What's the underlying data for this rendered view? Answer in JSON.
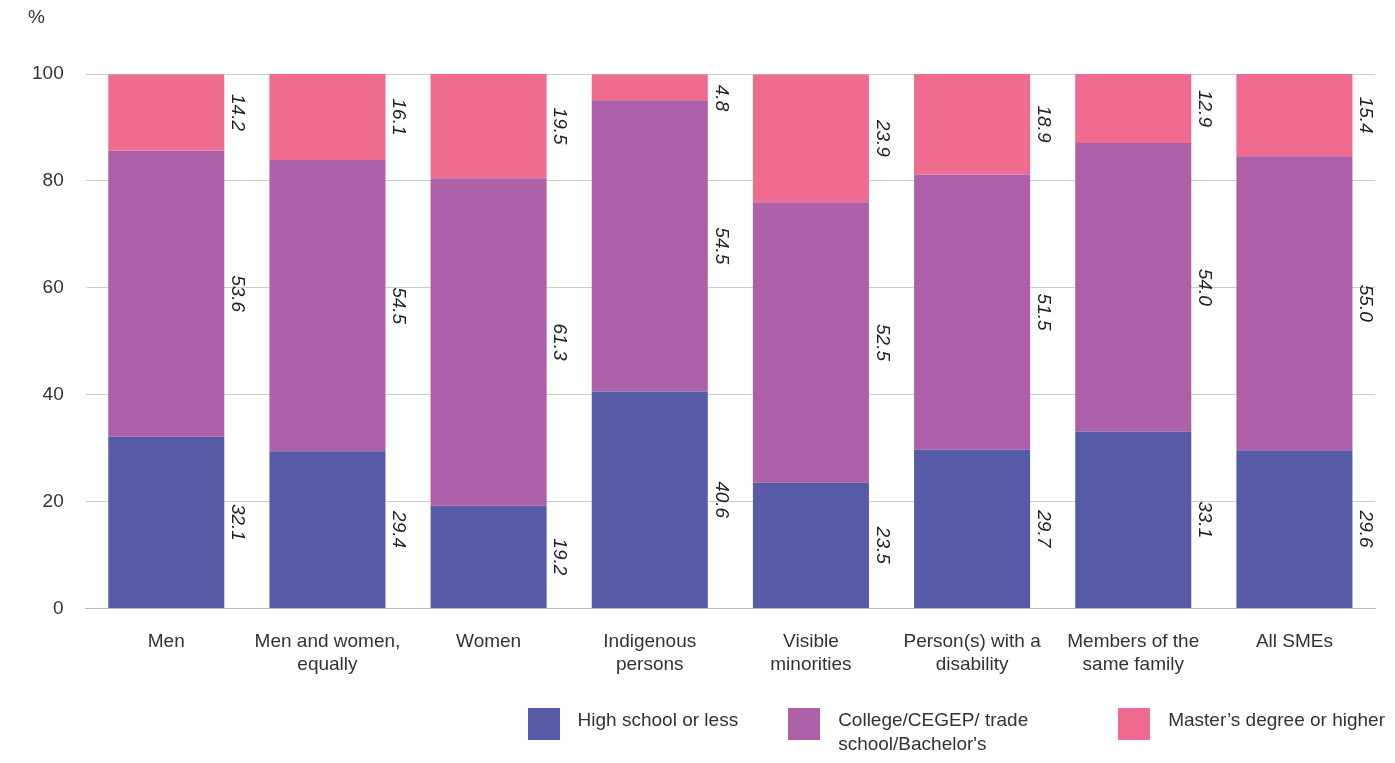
{
  "chart_data": {
    "type": "bar",
    "stacked": true,
    "ylabel": "%",
    "categories": [
      "Men",
      "Men and women, equally",
      "Women",
      "Indigenous persons",
      "Visible minorities",
      "Person(s) with a disability",
      "Members of the same family",
      "All SMEs"
    ],
    "series": [
      {
        "name": "High school or less",
        "color": "#575aa6",
        "values": [
          32.1,
          29.4,
          19.2,
          40.6,
          23.5,
          29.7,
          33.1,
          29.6
        ],
        "value_labels": [
          "32.1",
          "29.4",
          "19.2",
          "40.6",
          "23.5",
          "29.7",
          "33.1",
          "29.6"
        ]
      },
      {
        "name": "College/CEGEP/ trade school/Bachelor's",
        "color": "#ad5fa8",
        "values": [
          53.6,
          54.5,
          61.3,
          54.5,
          52.5,
          51.5,
          54.0,
          55.0
        ],
        "value_labels": [
          "53.6",
          "54.5",
          "61.3",
          "54.5",
          "52.5",
          "51.5",
          "54.0",
          "55.0"
        ]
      },
      {
        "name": "Master’s degree or higher",
        "color": "#ef6b8f",
        "values": [
          14.2,
          16.1,
          19.5,
          4.8,
          23.9,
          18.9,
          12.9,
          15.4
        ],
        "value_labels": [
          "14.2",
          "16.1",
          "19.5",
          "4.8",
          "23.9",
          "18.9",
          "12.9",
          "15.4"
        ]
      }
    ],
    "ylim": [
      0,
      100
    ],
    "yticks": [
      0,
      20,
      40,
      60,
      80,
      100
    ],
    "grid": "y",
    "legend": "bottom right"
  }
}
